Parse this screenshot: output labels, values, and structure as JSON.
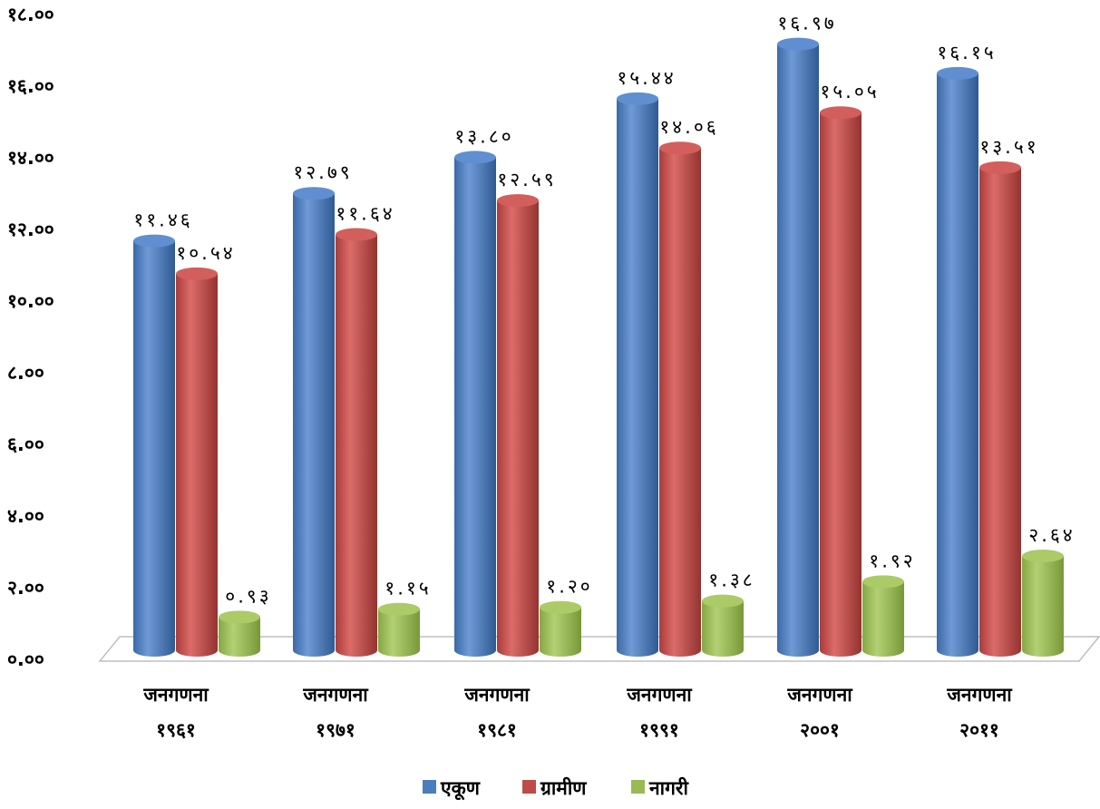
{
  "chart_data": {
    "type": "bar",
    "title": "",
    "xlabel": "",
    "ylabel": "",
    "ylim": [
      0,
      18
    ],
    "yticks": [
      "०.००",
      "२.००",
      "४.००",
      "६.००",
      "८.००",
      "१०.००",
      "१२.००",
      "१४.००",
      "१६.००",
      "१८.००"
    ],
    "categories": [
      {
        "line1": "जनगणना",
        "line2": "१९६१"
      },
      {
        "line1": "जनगणना",
        "line2": "१९७१"
      },
      {
        "line1": "जनगणना",
        "line2": "१९८१"
      },
      {
        "line1": "जनगणना",
        "line2": "१९९१"
      },
      {
        "line1": "जनगणना",
        "line2": "२००१"
      },
      {
        "line1": "जनगणना",
        "line2": "२०११"
      }
    ],
    "series": [
      {
        "name": "एकूण",
        "color": "#4a7ebb",
        "values": [
          11.46,
          12.79,
          13.8,
          15.44,
          16.97,
          16.15
        ],
        "labels": [
          "११.४६",
          "१२.७९",
          "१३.८०",
          "१५.४४",
          "१६.९७",
          "१६.१५"
        ]
      },
      {
        "name": "ग्रामीण",
        "color": "#be4b48",
        "values": [
          10.54,
          11.64,
          12.59,
          14.06,
          15.05,
          13.51
        ],
        "labels": [
          "१०.५४",
          "११.६४",
          "१२.५९",
          "१४.०६",
          "१५.०५",
          "१३.५१"
        ]
      },
      {
        "name": "नागरी",
        "color": "#98b954",
        "values": [
          0.93,
          1.15,
          1.2,
          1.38,
          1.92,
          2.64
        ],
        "labels": [
          "०.९३",
          "१.१५",
          "१.२०",
          "१.३८",
          "१.९२",
          "२.६४"
        ]
      }
    ],
    "grid": false,
    "legend": "bottom"
  }
}
